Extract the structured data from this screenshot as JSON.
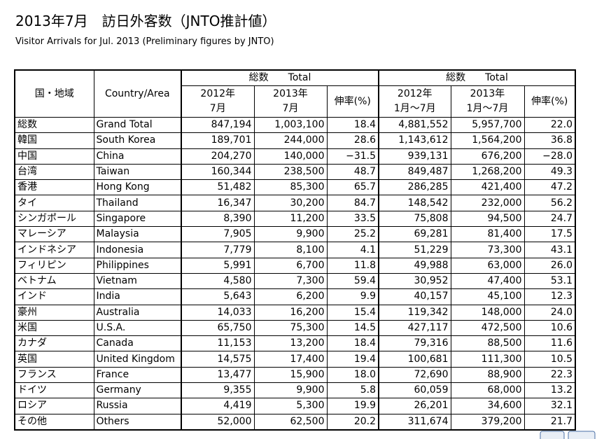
{
  "header": {
    "title": "2013年7月　訪日外客数（JNTO推計値）",
    "subtitle": "Visitor Arrivals for Jul. 2013 (Preliminary figures by JNTO)"
  },
  "table": {
    "group_headers": [
      "総数　　Total",
      "総数　　Total"
    ],
    "columns": [
      [
        "国・地域"
      ],
      [
        "Country/Area"
      ],
      [
        "2012年",
        "7月"
      ],
      [
        "2013年",
        "7月"
      ],
      [
        "伸率(%)"
      ],
      [
        "2012年",
        "1月～7月"
      ],
      [
        "2013年",
        "1月～7月"
      ],
      [
        "伸率(%)"
      ]
    ],
    "rows": [
      [
        "総数",
        "Grand Total",
        "847,194",
        "1,003,100",
        "18.4",
        "4,881,552",
        "5,957,700",
        "22.0"
      ],
      [
        "韓国",
        "South Korea",
        "189,701",
        "244,000",
        "28.6",
        "1,143,612",
        "1,564,200",
        "36.8"
      ],
      [
        "中国",
        "China",
        "204,270",
        "140,000",
        "−31.5",
        "939,131",
        "676,200",
        "−28.0"
      ],
      [
        "台湾",
        "Taiwan",
        "160,344",
        "238,500",
        "48.7",
        "849,487",
        "1,268,200",
        "49.3"
      ],
      [
        "香港",
        "Hong Kong",
        "51,482",
        "85,300",
        "65.7",
        "286,285",
        "421,400",
        "47.2"
      ],
      [
        "タイ",
        "Thailand",
        "16,347",
        "30,200",
        "84.7",
        "148,542",
        "232,000",
        "56.2"
      ],
      [
        "シンガポール",
        "Singapore",
        "8,390",
        "11,200",
        "33.5",
        "75,808",
        "94,500",
        "24.7"
      ],
      [
        "マレーシア",
        "Malaysia",
        "7,905",
        "9,900",
        "25.2",
        "69,281",
        "81,400",
        "17.5"
      ],
      [
        "インドネシア",
        "Indonesia",
        "7,779",
        "8,100",
        "4.1",
        "51,229",
        "73,300",
        "43.1"
      ],
      [
        "フィリピン",
        "Philippines",
        "5,991",
        "6,700",
        "11.8",
        "49,988",
        "63,000",
        "26.0"
      ],
      [
        "ベトナム",
        "Vietnam",
        "4,580",
        "7,300",
        "59.4",
        "30,952",
        "47,400",
        "53.1"
      ],
      [
        "インド",
        "India",
        "5,643",
        "6,200",
        "9.9",
        "40,157",
        "45,100",
        "12.3"
      ],
      [
        "豪州",
        "Australia",
        "14,033",
        "16,200",
        "15.4",
        "119,342",
        "148,000",
        "24.0"
      ],
      [
        "米国",
        "U.S.A.",
        "65,750",
        "75,300",
        "14.5",
        "427,117",
        "472,500",
        "10.6"
      ],
      [
        "カナダ",
        "Canada",
        "11,153",
        "13,200",
        "18.4",
        "79,316",
        "88,500",
        "11.6"
      ],
      [
        "英国",
        "United Kingdom",
        "14,575",
        "17,400",
        "19.4",
        "100,681",
        "111,300",
        "10.5"
      ],
      [
        "フランス",
        "France",
        "13,477",
        "15,900",
        "18.0",
        "72,690",
        "88,900",
        "22.3"
      ],
      [
        "ドイツ",
        "Germany",
        "9,355",
        "9,900",
        "5.8",
        "60,059",
        "68,000",
        "13.2"
      ],
      [
        "ロシア",
        "Russia",
        "4,419",
        "5,300",
        "19.9",
        "26,201",
        "34,600",
        "32.1"
      ],
      [
        "その他",
        "Others",
        "52,000",
        "62,500",
        "20.2",
        "311,674",
        "379,200",
        "21.7"
      ]
    ]
  }
}
